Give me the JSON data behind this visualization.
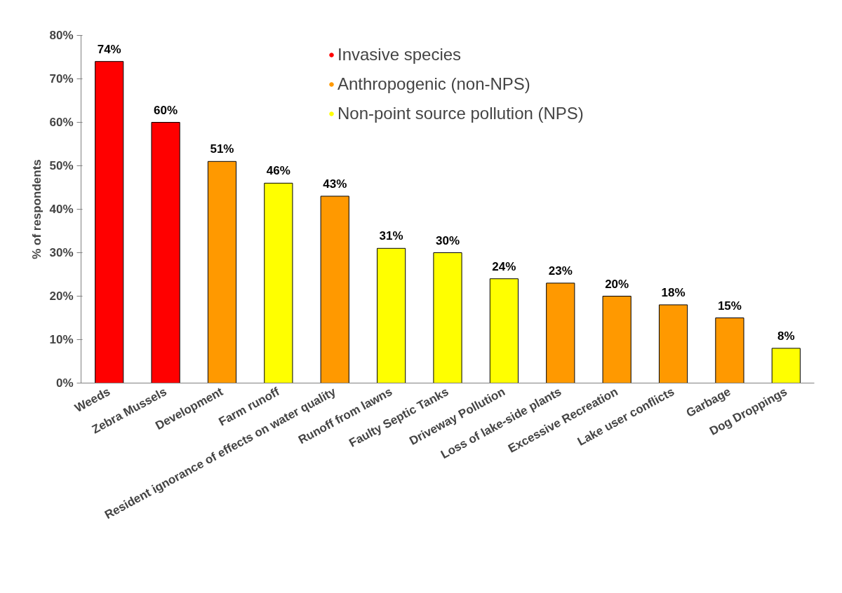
{
  "chart_data": {
    "type": "bar",
    "ylabel": "% of respondents",
    "categories": [
      "Weeds",
      "Zebra Mussels",
      "Development",
      "Farm runoff",
      "Resident ignorance of effects on water quality",
      "Runoff from lawns",
      "Faulty Septic Tanks",
      "Driveway Pollution",
      "Loss of lake-side plants",
      "Excessive Recreation",
      "Lake user conflicts",
      "Garbage",
      "Dog Droppings"
    ],
    "series": [
      {
        "name": "Invasive species",
        "color": "#ff0000",
        "values": [
          74,
          60,
          null,
          null,
          null,
          null,
          null,
          null,
          null,
          null,
          null,
          null,
          null
        ],
        "value_labels": [
          "74%",
          "60%",
          null,
          null,
          null,
          null,
          null,
          null,
          null,
          null,
          null,
          null,
          null
        ]
      },
      {
        "name": "Anthropogenic (non-NPS)",
        "color": "#ff9900",
        "values": [
          null,
          null,
          51,
          null,
          43,
          null,
          null,
          null,
          23,
          20,
          18,
          15,
          null
        ],
        "value_labels": [
          null,
          null,
          "51%",
          null,
          "43%",
          null,
          null,
          null,
          "23%",
          "20%",
          "18%",
          "15%",
          null
        ]
      },
      {
        "name": "Non-point source pollution (NPS)",
        "color": "#ffff00",
        "values": [
          null,
          null,
          null,
          46,
          null,
          31,
          30,
          24,
          null,
          null,
          null,
          null,
          8
        ],
        "value_labels": [
          null,
          null,
          null,
          "46%",
          null,
          "31%",
          "30%",
          "24%",
          null,
          null,
          null,
          null,
          "8%"
        ]
      }
    ],
    "ylim": [
      0,
      80
    ],
    "yticks": [
      {
        "value": 0,
        "label": "0%"
      },
      {
        "value": 10,
        "label": "10%"
      },
      {
        "value": 20,
        "label": "20%"
      },
      {
        "value": 30,
        "label": "30%"
      },
      {
        "value": 40,
        "label": "40%"
      },
      {
        "value": 50,
        "label": "50%"
      },
      {
        "value": 60,
        "label": "60%"
      },
      {
        "value": 70,
        "label": "70%"
      },
      {
        "value": 80,
        "label": "80%"
      }
    ],
    "grid": false,
    "legend": "top",
    "marker": "circle"
  }
}
